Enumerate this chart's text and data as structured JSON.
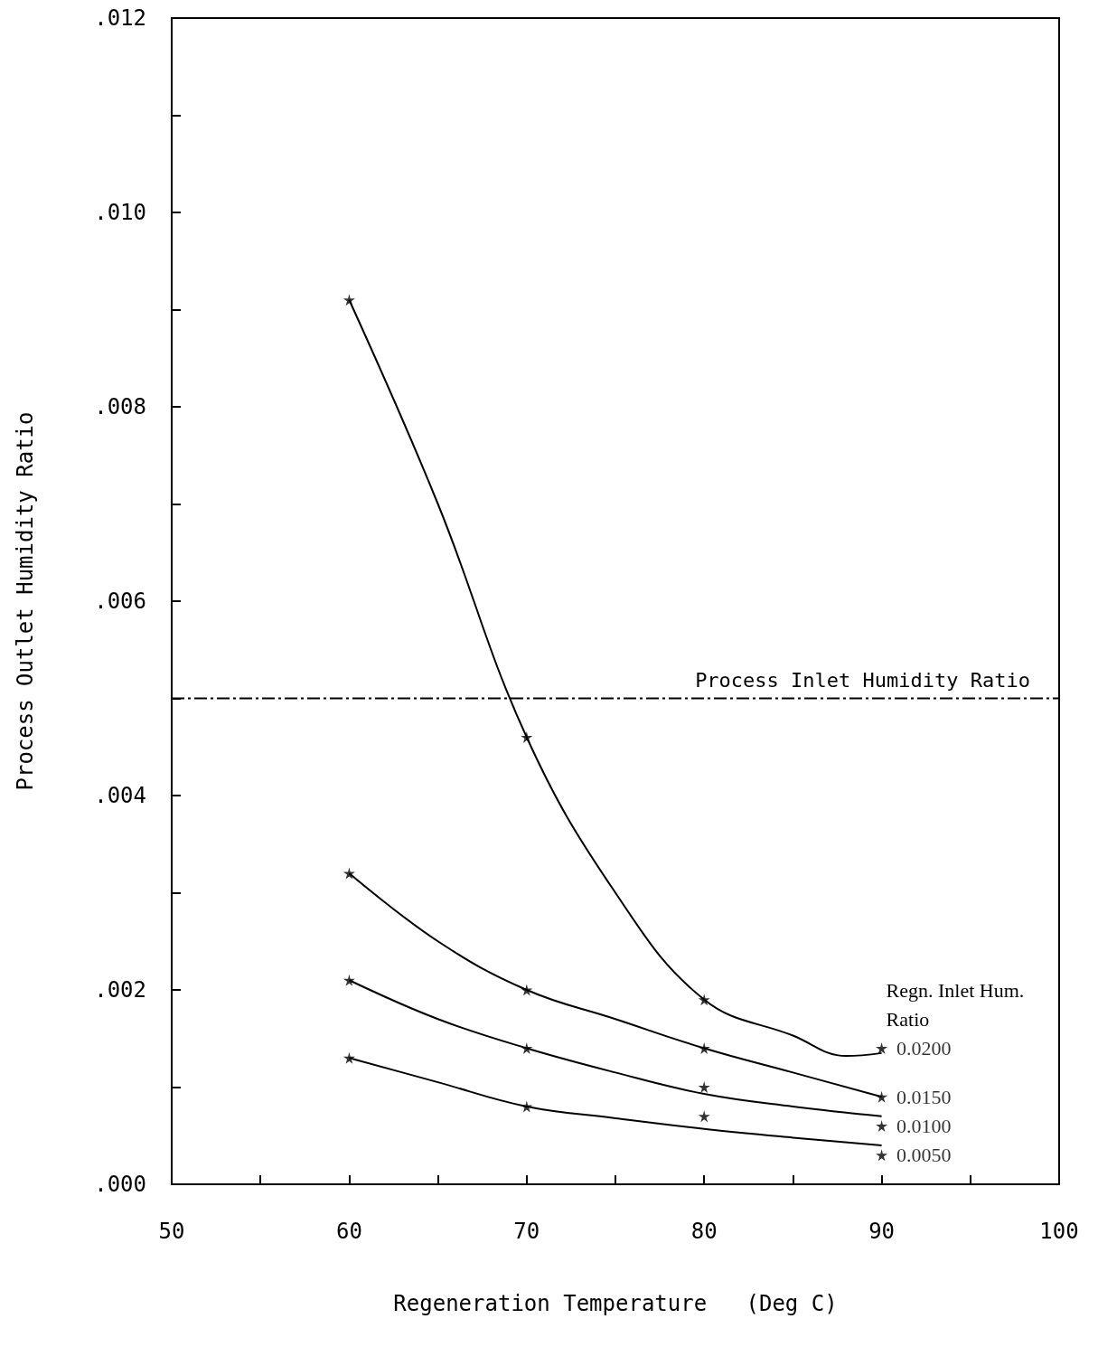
{
  "chart_data": {
    "type": "scatter",
    "xlabel": "Regeneration Temperature   (Deg C)",
    "ylabel": "Process Outlet Humidity Ratio",
    "legend_title": "Regn. Inlet Hum. Ratio",
    "x": [
      60,
      70,
      80,
      90
    ],
    "xlim": [
      50,
      100
    ],
    "xticks": [
      50,
      {
        "value": 55,
        "label": null
      },
      60,
      {
        "value": 65,
        "label": null
      },
      70,
      {
        "value": 75,
        "label": null
      },
      80,
      {
        "value": 85,
        "label": null
      },
      90,
      {
        "value": 95,
        "label": null
      },
      100
    ],
    "ylim": [
      0,
      0.012
    ],
    "yticks": [
      {
        "value": 0,
        "label": ".000"
      },
      {
        "value": 0.001,
        "label": null
      },
      {
        "value": 0.002,
        "label": ".002"
      },
      {
        "value": 0.003,
        "label": null
      },
      {
        "value": 0.004,
        "label": ".004"
      },
      {
        "value": 0.005,
        "label": null
      },
      {
        "value": 0.006,
        "label": ".006"
      },
      {
        "value": 0.007,
        "label": null
      },
      {
        "value": 0.008,
        "label": ".008"
      },
      {
        "value": 0.009,
        "label": null
      },
      {
        "value": 0.01,
        "label": ".010"
      },
      {
        "value": 0.011,
        "label": null
      },
      {
        "value": 0.012,
        "label": ".012"
      }
    ],
    "grid": false,
    "marker": "star",
    "series": [
      {
        "name": "0.0200",
        "color": "#000000",
        "values": [
          0.0091,
          0.0046,
          0.0019,
          0.0014
        ]
      },
      {
        "name": "0.0150",
        "color": "#000000",
        "values": [
          0.0032,
          0.002,
          0.0014,
          0.0009
        ]
      },
      {
        "name": "0.0100",
        "color": "#000000",
        "values": [
          0.0021,
          0.0014,
          0.001,
          0.0006
        ]
      },
      {
        "name": "0.0050",
        "color": "#000000",
        "values": [
          0.0013,
          0.0008,
          0.0007,
          0.0003
        ]
      },
      {
        "type": "line",
        "color": "#000000",
        "marker": "none",
        "line_style": "solid",
        "x": [
          60,
          65,
          70,
          75,
          80,
          85,
          88,
          90
        ],
        "values": [
          0.0091,
          0.007,
          0.0046,
          0.003,
          0.0019,
          0.00153,
          0.00132,
          0.00135
        ]
      },
      {
        "type": "line",
        "color": "#000000",
        "marker": "none",
        "line_style": "solid",
        "x": [
          60,
          65,
          70,
          75,
          80,
          85,
          90
        ],
        "values": [
          0.0032,
          0.0025,
          0.002,
          0.0017,
          0.0014,
          0.00115,
          0.0009
        ]
      },
      {
        "type": "line",
        "color": "#000000",
        "marker": "none",
        "line_style": "solid",
        "x": [
          60,
          65,
          70,
          75,
          80,
          85,
          90
        ],
        "values": [
          0.0021,
          0.0017,
          0.0014,
          0.00115,
          0.00093,
          0.0008,
          0.0007
        ]
      },
      {
        "type": "line",
        "color": "#000000",
        "marker": "none",
        "line_style": "solid",
        "x": [
          60,
          65,
          70,
          75,
          80,
          85,
          90
        ],
        "values": [
          0.0013,
          0.00105,
          0.0008,
          0.00068,
          0.00057,
          0.00048,
          0.0004
        ]
      }
    ],
    "ref_lines": [
      {
        "axis": "y",
        "value": 0.005,
        "label": "Process Inlet Humidity Ratio",
        "line_style": "dashed"
      }
    ]
  }
}
